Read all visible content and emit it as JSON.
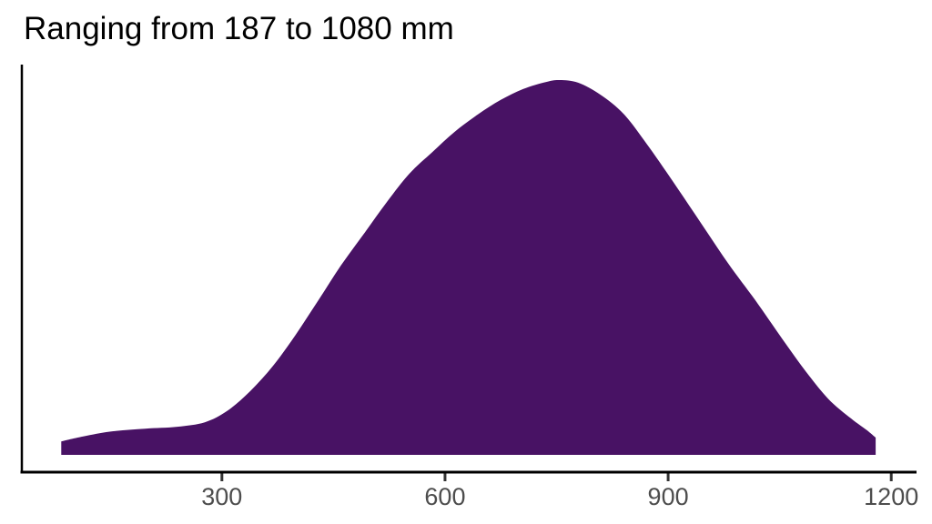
{
  "title": "Ranging from 187 to 1080 mm",
  "colors": {
    "background": "#ffffff",
    "fill": "#481264",
    "axis_line": "#000000",
    "tick_mark": "#333333",
    "tick_label": "#4d4d4d",
    "title_text": "#000000"
  },
  "chart_data": {
    "type": "area",
    "subtype": "density",
    "title": "Ranging from 187 to 1080 mm",
    "xlabel": "",
    "ylabel": "",
    "grid": false,
    "legend": false,
    "data_range_mm": [
      187,
      1080
    ],
    "x_ticks": [
      300,
      600,
      900,
      1200
    ],
    "xlim": [
      31,
      1234
    ],
    "ylim": [
      0,
      1.05
    ],
    "x": [
      84,
      118,
      154,
      197,
      240,
      277,
      307,
      338,
      369,
      399,
      430,
      460,
      491,
      522,
      552,
      583,
      613,
      644,
      675,
      705,
      736,
      754,
      779,
      809,
      840,
      871,
      907,
      944,
      981,
      1017,
      1054,
      1085,
      1115,
      1146,
      1167,
      1179
    ],
    "density_relative": [
      0.036,
      0.051,
      0.063,
      0.07,
      0.075,
      0.087,
      0.117,
      0.17,
      0.238,
      0.32,
      0.413,
      0.505,
      0.59,
      0.675,
      0.75,
      0.808,
      0.862,
      0.908,
      0.947,
      0.976,
      0.995,
      1.0,
      0.993,
      0.961,
      0.91,
      0.83,
      0.728,
      0.619,
      0.51,
      0.413,
      0.308,
      0.223,
      0.15,
      0.097,
      0.066,
      0.046
    ]
  }
}
